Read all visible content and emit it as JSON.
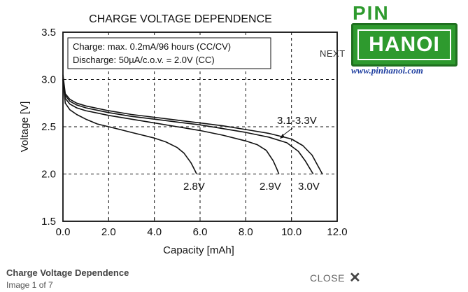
{
  "viewer": {
    "next_label": "NEXT",
    "close_label": "CLOSE",
    "close_icon": "close-icon",
    "caption_title": "Charge Voltage Dependence",
    "caption_counter": "Image 1 of 7"
  },
  "logo": {
    "top_text": "PIN",
    "main_text": "HANOI",
    "url": "www.pinhanoi.com",
    "colors": {
      "green": "#2e9a2e",
      "blue": "#1f3fa0"
    }
  },
  "chart_data": {
    "type": "line",
    "title": "CHARGE VOLTAGE DEPENDENCE",
    "xlabel": "Capacity [mAh]",
    "ylabel": "Voltage [V]",
    "xlim": [
      0,
      12
    ],
    "ylim": [
      1.5,
      3.5
    ],
    "xticks": [
      "0.0",
      "2.0",
      "4.0",
      "6.0",
      "8.0",
      "10.0",
      "12.0"
    ],
    "yticks": [
      "1.5",
      "2.0",
      "2.5",
      "3.0",
      "3.5"
    ],
    "grid": true,
    "legend_box": [
      "Charge: max. 0.2mA/96 hours (CC/CV)",
      "Discharge: 50µA/c.o.v. = 2.0V (CC)"
    ],
    "series": [
      {
        "name": "2.8V",
        "x": [
          0,
          0.1,
          0.3,
          0.6,
          1.0,
          1.5,
          2.0,
          2.5,
          3.0,
          3.5,
          4.0,
          4.5,
          5.0,
          5.3,
          5.6,
          5.75,
          5.85
        ],
        "y": [
          3.0,
          2.75,
          2.68,
          2.63,
          2.58,
          2.53,
          2.5,
          2.47,
          2.44,
          2.41,
          2.38,
          2.34,
          2.28,
          2.22,
          2.12,
          2.05,
          2.0
        ]
      },
      {
        "name": "2.9V",
        "x": [
          0,
          0.1,
          0.3,
          0.6,
          1.0,
          2.0,
          3.0,
          4.0,
          5.0,
          6.0,
          7.0,
          8.0,
          8.5,
          8.9,
          9.2,
          9.35,
          9.45
        ],
        "y": [
          3.0,
          2.8,
          2.74,
          2.7,
          2.67,
          2.62,
          2.58,
          2.54,
          2.5,
          2.46,
          2.41,
          2.35,
          2.31,
          2.25,
          2.14,
          2.06,
          2.0
        ]
      },
      {
        "name": "3.0V",
        "x": [
          0,
          0.1,
          0.3,
          0.6,
          1.0,
          2.0,
          3.0,
          4.0,
          5.0,
          6.0,
          7.0,
          8.0,
          9.0,
          9.8,
          10.3,
          10.6,
          10.8,
          10.95
        ],
        "y": [
          3.0,
          2.83,
          2.77,
          2.73,
          2.7,
          2.65,
          2.61,
          2.58,
          2.55,
          2.52,
          2.48,
          2.44,
          2.39,
          2.33,
          2.24,
          2.14,
          2.06,
          2.0
        ]
      },
      {
        "name": "3.1-3.3V",
        "x": [
          0,
          0.1,
          0.3,
          0.6,
          1.0,
          2.0,
          3.0,
          4.0,
          5.0,
          6.0,
          7.0,
          8.0,
          9.0,
          10.0,
          10.5,
          10.9,
          11.15,
          11.35
        ],
        "y": [
          3.05,
          2.85,
          2.79,
          2.75,
          2.72,
          2.67,
          2.63,
          2.6,
          2.57,
          2.54,
          2.51,
          2.47,
          2.43,
          2.37,
          2.3,
          2.2,
          2.09,
          2.0
        ]
      }
    ],
    "annotations": [
      "3.1-3.3V",
      "2.8V",
      "2.9V",
      "3.0V"
    ]
  }
}
